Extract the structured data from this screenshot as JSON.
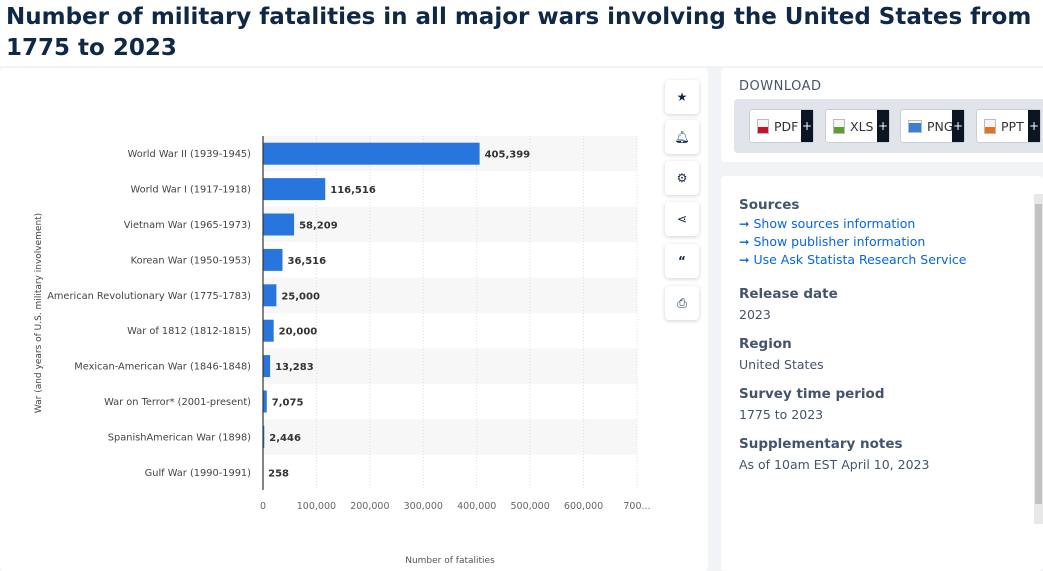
{
  "title": "Number of military fatalities in all major wars involving the United States from 1775 to 2023",
  "chart_data": {
    "type": "bar",
    "orientation": "horizontal",
    "categories": [
      "World War II (1939-1945)",
      "World War I (1917-1918)",
      "Vietnam War (1965-1973)",
      "Korean War (1950-1953)",
      "American Revolutionary War (1775-1783)",
      "War of 1812 (1812-1815)",
      "Mexican-American War (1846-1848)",
      "War on Terror* (2001-present)",
      "SpanishAmerican War (1898)",
      "Gulf War (1990-1991)"
    ],
    "values": [
      405399,
      116516,
      58209,
      36516,
      25000,
      20000,
      13283,
      7075,
      2446,
      258
    ],
    "value_labels": [
      "405,399",
      "116,516",
      "58,209",
      "36,516",
      "25,000",
      "20,000",
      "13,283",
      "7,075",
      "2,446",
      "258"
    ],
    "xlabel": "Number of fatalities",
    "ylabel": "War (and years of U.S. military involvement)",
    "xlim": [
      0,
      700000
    ],
    "ticks": [
      "0",
      "100,000",
      "200,000",
      "300,000",
      "400,000",
      "500,000",
      "600,000",
      "700..."
    ],
    "grid": true,
    "bar_color": "#2876dd"
  },
  "tools": [
    "star-icon",
    "bell-icon",
    "gear-icon",
    "share-icon",
    "quote-icon",
    "print-icon"
  ],
  "download": {
    "heading": "DOWNLOAD",
    "buttons": [
      {
        "label": "PDF",
        "color": "#c8102e"
      },
      {
        "label": "XLS",
        "color": "#5aa02c"
      },
      {
        "label": "PNG",
        "color": "#3b7fd0"
      },
      {
        "label": "PPT",
        "color": "#e8721c"
      }
    ],
    "plus": "+"
  },
  "info": {
    "sources_heading": "Sources",
    "links": [
      "Show sources information",
      "Show publisher information",
      "Use Ask Statista Research Service"
    ],
    "arrow": "➞",
    "release_heading": "Release date",
    "release": "2023",
    "region_heading": "Region",
    "region": "United States",
    "period_heading": "Survey time period",
    "period": "1775 to 2023",
    "notes_heading": "Supplementary notes",
    "notes": "As of 10am EST April 10, 2023"
  }
}
